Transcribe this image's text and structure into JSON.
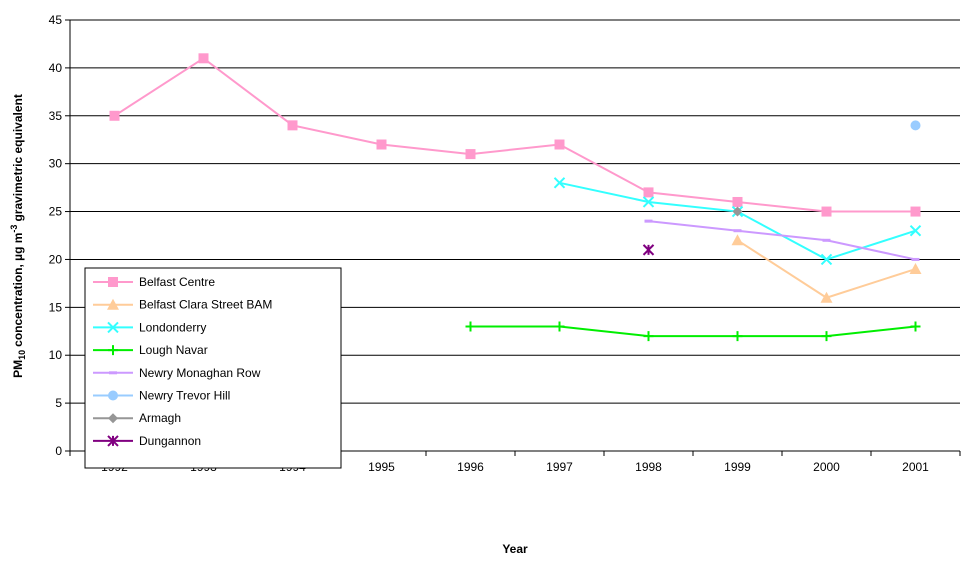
{
  "chart_data": {
    "type": "line",
    "x_label": "Year",
    "y_label": [
      "PM",
      "10",
      "concentration, µg m",
      "-3",
      "gravimetric equivalent"
    ],
    "categories": [
      "1992",
      "1993",
      "1994",
      "1995",
      "1996",
      "1997",
      "1998",
      "1999",
      "2000",
      "2001"
    ],
    "ylim": [
      0,
      45
    ],
    "yticks": [
      0,
      5,
      10,
      15,
      20,
      25,
      30,
      35,
      40,
      45
    ],
    "grid": true,
    "legend": "lower left",
    "series": [
      {
        "name": "Belfast Centre",
        "color": "#ff99cc",
        "marker": "square",
        "values": [
          35,
          41,
          34,
          32,
          31,
          32,
          27,
          26,
          25,
          25
        ]
      },
      {
        "name": "Belfast Clara Street BAM",
        "color": "#ffcc99",
        "marker": "triangle",
        "values": [
          null,
          null,
          null,
          null,
          null,
          null,
          null,
          22,
          16,
          19
        ]
      },
      {
        "name": "Londonderry",
        "color": "#33ffff",
        "marker": "x",
        "values": [
          null,
          null,
          null,
          null,
          null,
          28,
          26,
          25,
          20,
          23
        ]
      },
      {
        "name": "Lough Navar",
        "color": "#00ee00",
        "marker": "plus",
        "values": [
          null,
          null,
          null,
          null,
          13,
          13,
          12,
          12,
          12,
          13
        ]
      },
      {
        "name": "Newry Monaghan Row",
        "color": "#cc99ff",
        "marker": "dash",
        "values": [
          null,
          null,
          null,
          null,
          null,
          null,
          24,
          23,
          22,
          20
        ]
      },
      {
        "name": "Newry Trevor Hill",
        "color": "#99ccff",
        "marker": "circle",
        "values": [
          null,
          null,
          null,
          null,
          null,
          null,
          null,
          null,
          null,
          34
        ]
      },
      {
        "name": "Armagh",
        "color": "#969696",
        "marker": "diamond",
        "values": [
          null,
          null,
          null,
          null,
          null,
          null,
          null,
          25,
          null,
          null
        ]
      },
      {
        "name": "Dungannon",
        "color": "#800080",
        "marker": "star",
        "values": [
          null,
          null,
          null,
          null,
          null,
          null,
          21,
          null,
          null,
          null
        ]
      }
    ]
  }
}
